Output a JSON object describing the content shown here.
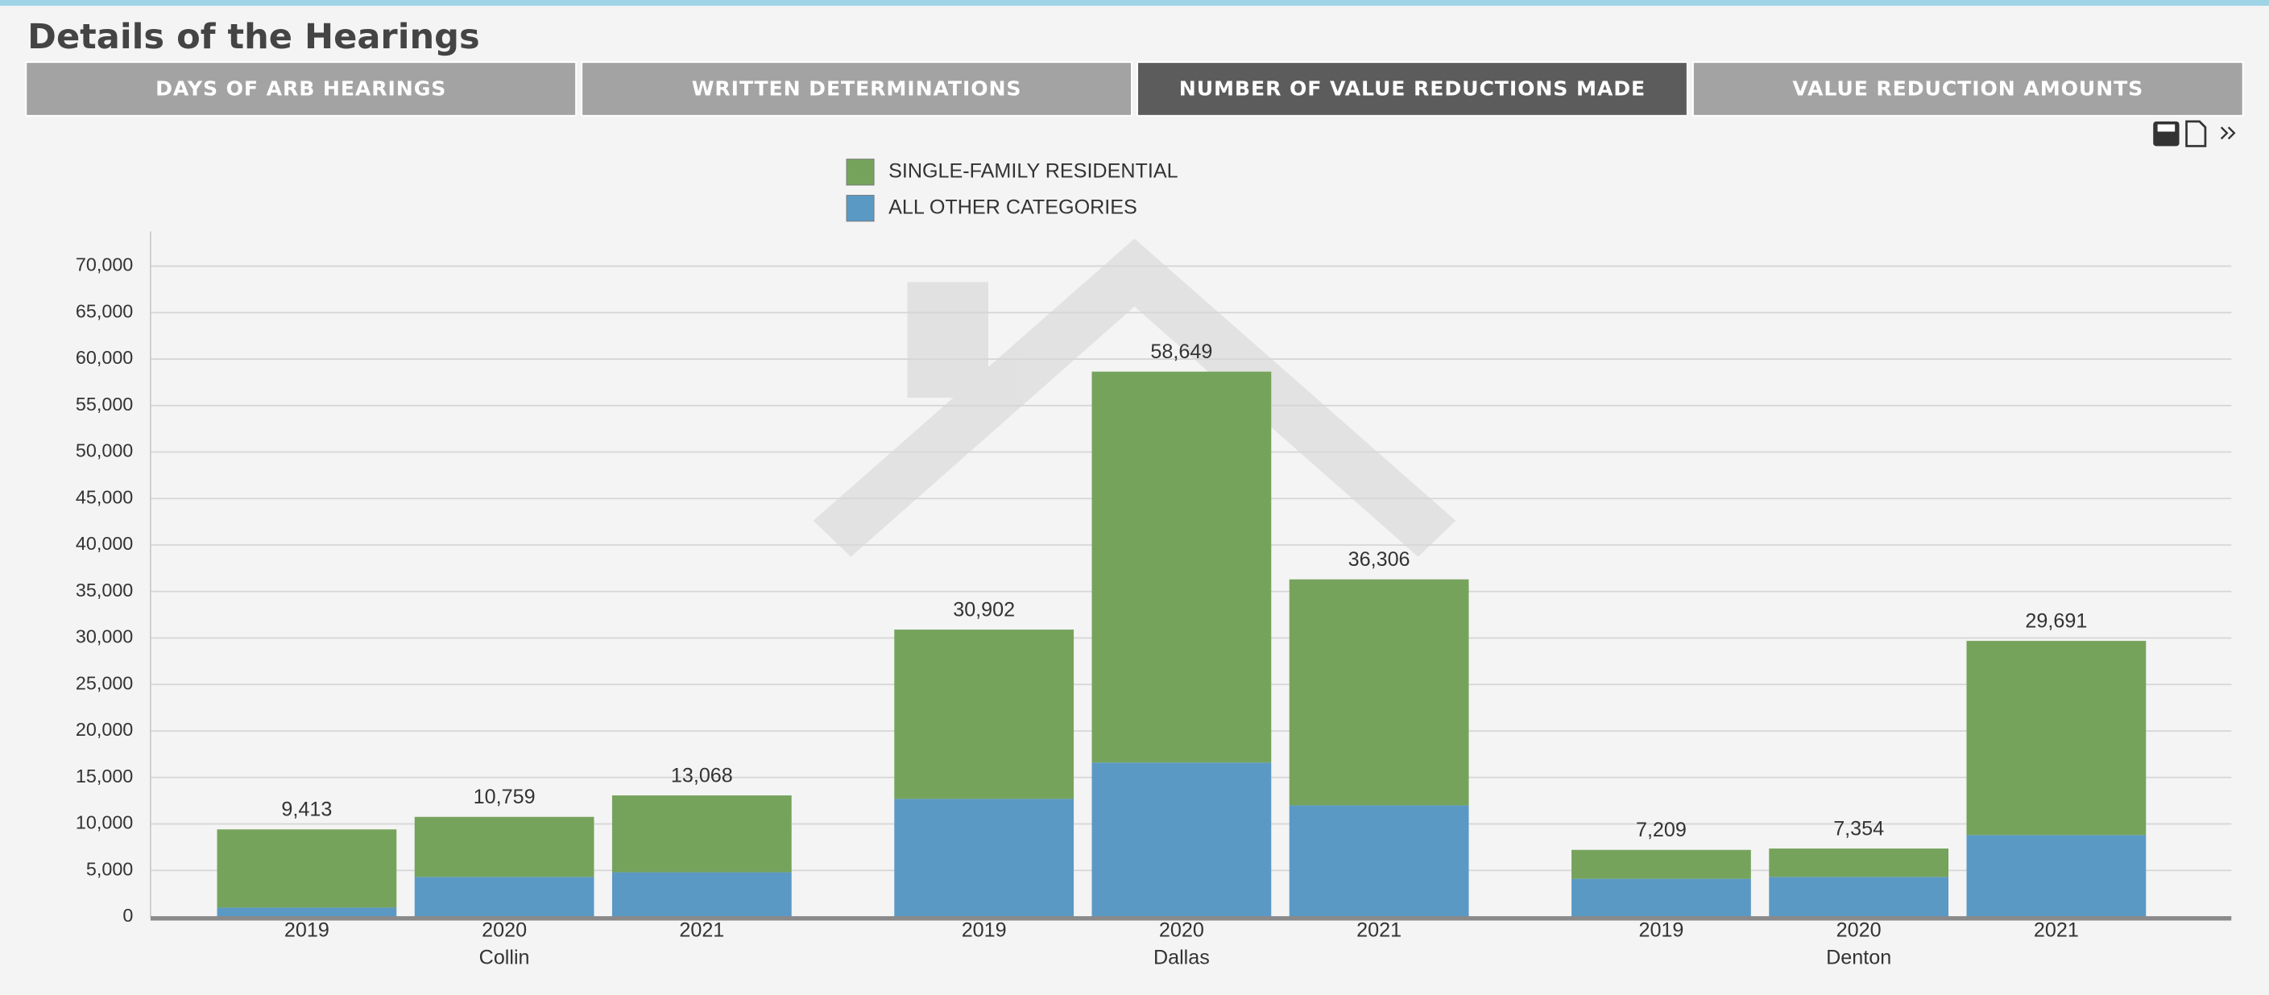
{
  "page_title": "Details of the Hearings",
  "tabs": [
    "DAYS OF ARB HEARINGS",
    "WRITTEN DETERMINATIONS",
    "NUMBER OF VALUE REDUCTIONS MADE",
    "VALUE REDUCTION AMOUNTS"
  ],
  "active_tab": 2,
  "chart_data": {
    "type": "stacked_bar",
    "categories": [
      "2019",
      "2020",
      "2021",
      "2019",
      "2020",
      "2021",
      "2019",
      "2020",
      "2021"
    ],
    "groups": [
      "Collin",
      "Dallas",
      "Denton"
    ],
    "series": [
      {
        "name": "SINGLE-FAMILY RESIDENTIAL",
        "color": "#76a35c",
        "values": [
          8413,
          6459,
          8268,
          18202,
          42049,
          24306,
          3109,
          3054,
          20891
        ]
      },
      {
        "name": "ALL OTHER CATEGORIES",
        "color": "#5b99c5",
        "values": [
          1000,
          4300,
          4800,
          12700,
          16600,
          12000,
          4100,
          4300,
          8800
        ]
      }
    ],
    "totals": {
      "values": [
        9413,
        10759,
        13068,
        30902,
        58649,
        36306,
        7209,
        7354,
        29691
      ],
      "value_labels": [
        "9,413",
        "10,759",
        "13,068",
        "30,902",
        "58,649",
        "36,306",
        "7,209",
        "7,354",
        "29,691"
      ]
    },
    "ylim": [
      0,
      70000
    ],
    "yticks": [
      0,
      {
        "value": 5000,
        "label": "5,000"
      },
      {
        "value": 10000,
        "label": "10,000"
      },
      {
        "value": 15000,
        "label": "15,000"
      },
      {
        "value": 20000,
        "label": "20,000"
      },
      {
        "value": 25000,
        "label": "25,000"
      },
      {
        "value": 30000,
        "label": "30,000"
      },
      {
        "value": 35000,
        "label": "35,000"
      },
      {
        "value": 40000,
        "label": "40,000"
      },
      {
        "value": 45000,
        "label": "45,000"
      },
      {
        "value": 50000,
        "label": "50,000"
      },
      {
        "value": 55000,
        "label": "55,000"
      },
      {
        "value": 60000,
        "label": "60,000"
      },
      {
        "value": 65000,
        "label": "65,000"
      },
      {
        "value": 70000,
        "label": "70,000"
      }
    ],
    "grid": true
  }
}
